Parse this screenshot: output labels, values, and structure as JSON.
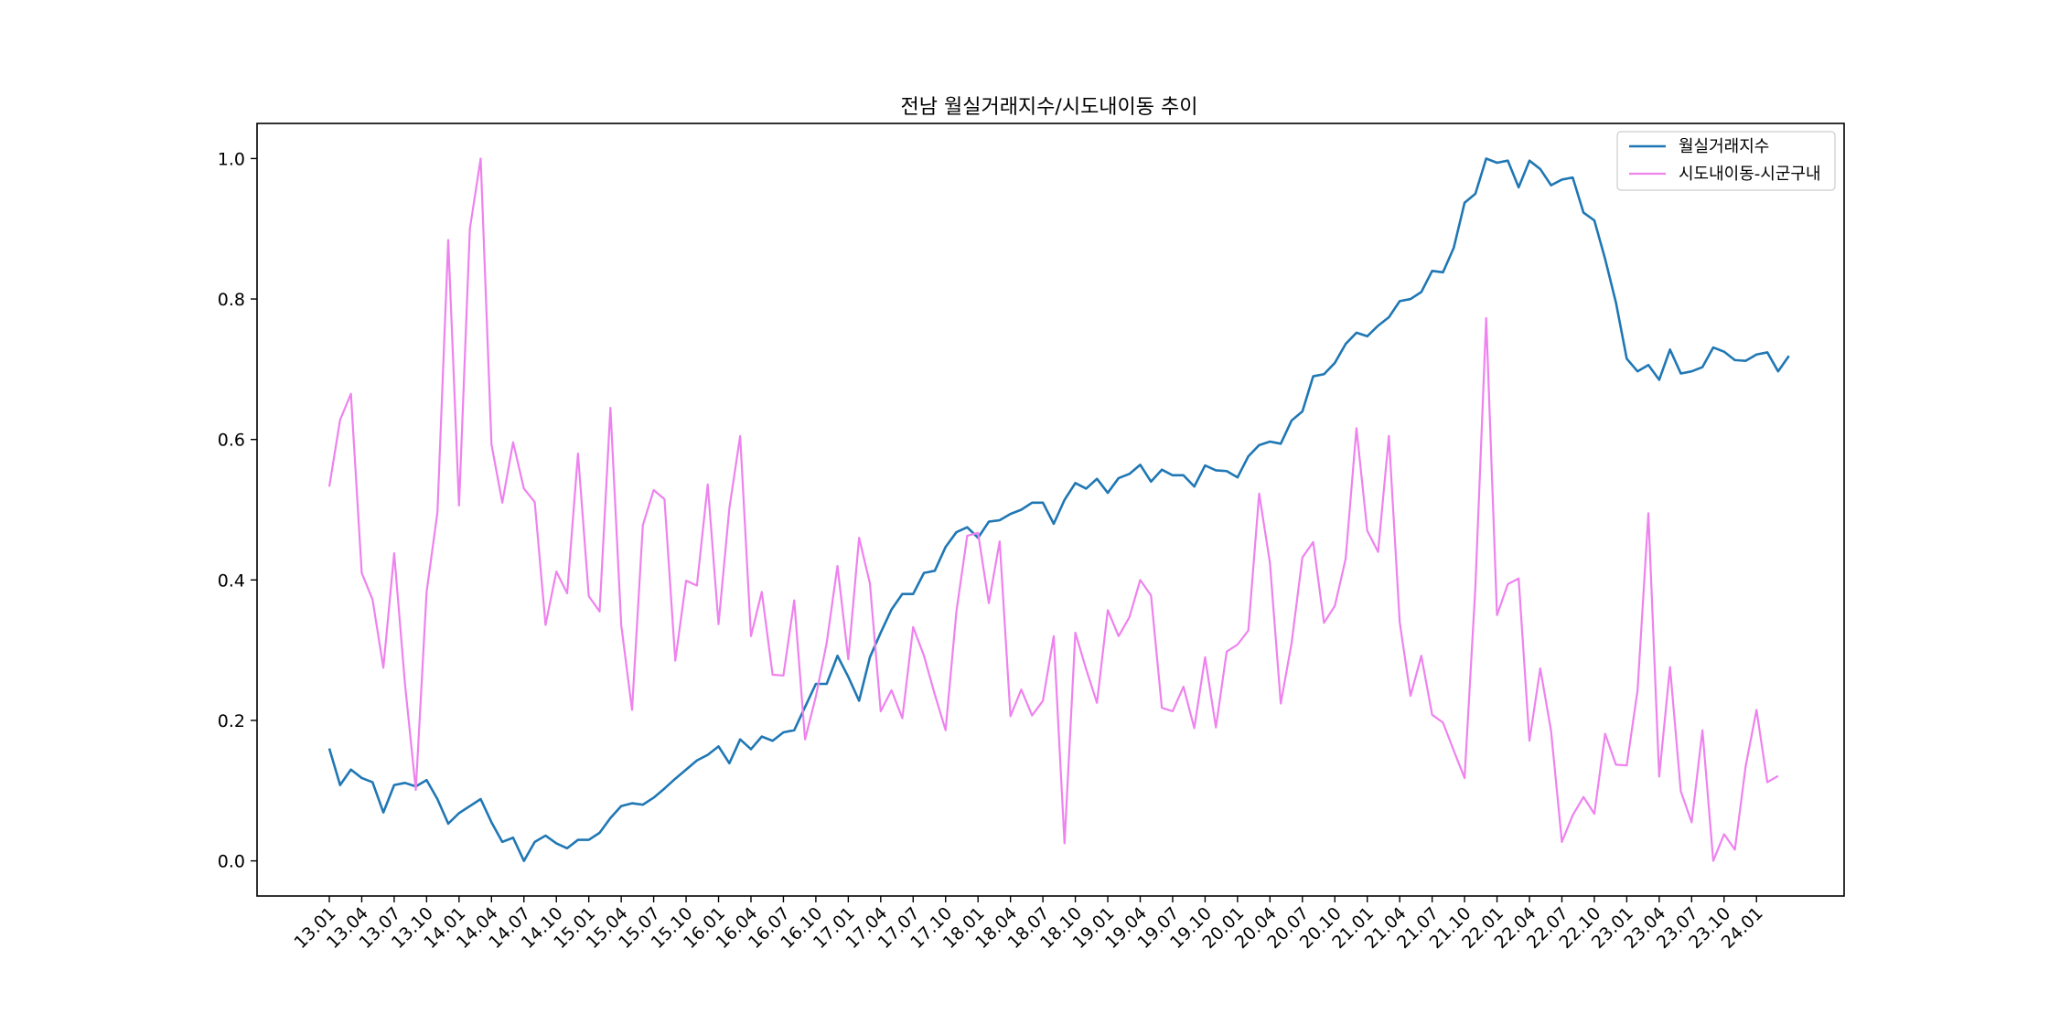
{
  "chart_data": {
    "type": "line",
    "title": "전남 월실거래지수/시도내이동 추이",
    "xlabel": "",
    "ylabel": "",
    "ylim": [
      -0.05,
      1.05
    ],
    "yticks": [
      "0.0",
      "0.2",
      "0.4",
      "0.6",
      "0.8",
      "1.0"
    ],
    "xticks": [
      "13.01",
      "13.04",
      "13.07",
      "13.10",
      "14.01",
      "14.04",
      "14.07",
      "14.10",
      "15.01",
      "15.04",
      "15.07",
      "15.10",
      "16.01",
      "16.04",
      "16.07",
      "16.10",
      "17.01",
      "17.04",
      "17.07",
      "17.10",
      "18.01",
      "18.04",
      "18.07",
      "18.10",
      "19.01",
      "19.04",
      "19.07",
      "19.10",
      "20.01",
      "20.04",
      "20.07",
      "20.10",
      "21.01",
      "21.04",
      "21.07",
      "21.10",
      "22.01",
      "22.04",
      "22.07",
      "22.10",
      "23.01",
      "23.04",
      "23.07",
      "23.10",
      "24.01"
    ],
    "grid": false,
    "legend_position": "top-right",
    "series": [
      {
        "name": "월실거래지수",
        "color": "#1f77b4",
        "values": [
          0.16,
          0.108,
          0.13,
          0.118,
          0.112,
          0.069,
          0.108,
          0.111,
          0.106,
          0.115,
          0.088,
          0.053,
          0.068,
          0.078,
          0.088,
          0.055,
          0.027,
          0.033,
          0.0,
          0.027,
          0.036,
          0.025,
          0.018,
          0.03,
          0.03,
          0.04,
          0.061,
          0.078,
          0.082,
          0.08,
          0.09,
          0.103,
          0.117,
          0.13,
          0.143,
          0.151,
          0.163,
          0.139,
          0.173,
          0.159,
          0.177,
          0.171,
          0.183,
          0.186,
          0.219,
          0.252,
          0.252,
          0.292,
          0.262,
          0.228,
          0.29,
          0.325,
          0.358,
          0.38,
          0.38,
          0.41,
          0.413,
          0.447,
          0.468,
          0.475,
          0.46,
          0.483,
          0.485,
          0.494,
          0.5,
          0.51,
          0.51,
          0.48,
          0.514,
          0.538,
          0.53,
          0.544,
          0.524,
          0.545,
          0.551,
          0.564,
          0.54,
          0.557,
          0.549,
          0.549,
          0.533,
          0.563,
          0.556,
          0.555,
          0.546,
          0.576,
          0.592,
          0.597,
          0.594,
          0.627,
          0.64,
          0.69,
          0.693,
          0.709,
          0.736,
          0.752,
          0.747,
          0.762,
          0.774,
          0.797,
          0.8,
          0.81,
          0.84,
          0.838,
          0.873,
          0.937,
          0.95,
          1.0,
          0.994,
          0.997,
          0.959,
          0.997,
          0.985,
          0.962,
          0.97,
          0.973,
          0.923,
          0.912,
          0.857,
          0.795,
          0.715,
          0.697,
          0.706,
          0.685,
          0.728,
          0.694,
          0.697,
          0.703,
          0.731,
          0.725,
          0.713,
          0.712,
          0.721,
          0.724,
          0.697,
          0.719
        ]
      },
      {
        "name": "시도내이동-시군구내",
        "color": "#ee82ee",
        "values": [
          0.533,
          0.628,
          0.665,
          0.41,
          0.372,
          0.275,
          0.438,
          0.252,
          0.101,
          0.383,
          0.496,
          0.884,
          0.506,
          0.9,
          1.0,
          0.593,
          0.51,
          0.596,
          0.53,
          0.511,
          0.336,
          0.412,
          0.381,
          0.58,
          0.377,
          0.355,
          0.645,
          0.336,
          0.215,
          0.478,
          0.528,
          0.515,
          0.285,
          0.399,
          0.392,
          0.536,
          0.337,
          0.502,
          0.605,
          0.32,
          0.383,
          0.265,
          0.264,
          0.371,
          0.173,
          0.234,
          0.31,
          0.42,
          0.287,
          0.46,
          0.395,
          0.213,
          0.243,
          0.203,
          0.333,
          0.292,
          0.237,
          0.186,
          0.355,
          0.463,
          0.467,
          0.367,
          0.455,
          0.206,
          0.244,
          0.207,
          0.228,
          0.32,
          0.025,
          0.325,
          0.273,
          0.225,
          0.357,
          0.32,
          0.347,
          0.4,
          0.378,
          0.218,
          0.213,
          0.248,
          0.189,
          0.29,
          0.19,
          0.298,
          0.308,
          0.328,
          0.523,
          0.424,
          0.224,
          0.31,
          0.432,
          0.454,
          0.339,
          0.363,
          0.43,
          0.616,
          0.47,
          0.44,
          0.605,
          0.34,
          0.235,
          0.292,
          0.208,
          0.197,
          0.157,
          0.118,
          0.39,
          0.773,
          0.35,
          0.394,
          0.402,
          0.171,
          0.274,
          0.185,
          0.027,
          0.065,
          0.091,
          0.067,
          0.181,
          0.137,
          0.136,
          0.243,
          0.495,
          0.12,
          0.276,
          0.099,
          0.055,
          0.186,
          0.0,
          0.038,
          0.016,
          0.135,
          0.215,
          0.112,
          0.121
        ]
      }
    ]
  }
}
